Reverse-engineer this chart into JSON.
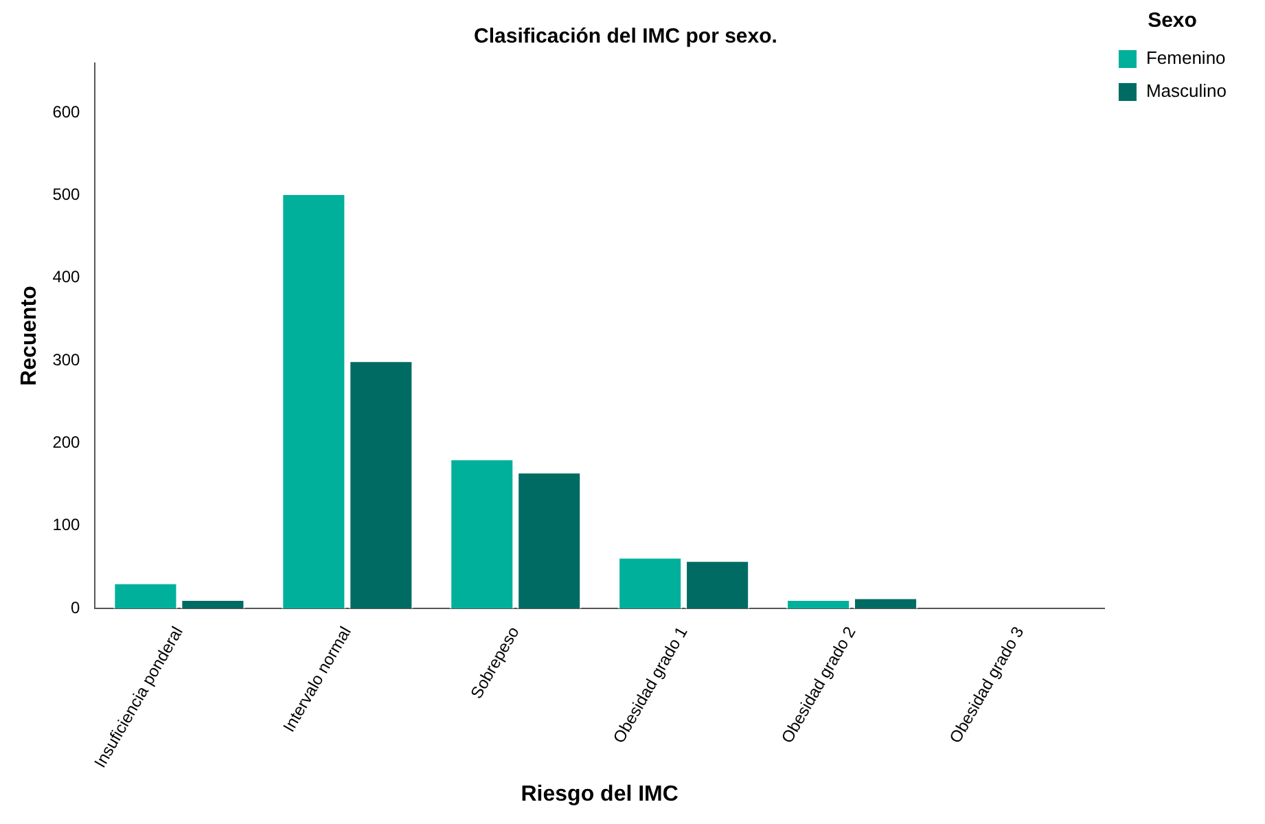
{
  "chart_data": {
    "type": "bar",
    "title": "Clasificación del IMC por sexo.",
    "xlabel": "Riesgo del IMC",
    "ylabel": "Recuento",
    "legend_title": "Sexo",
    "categories": [
      "Insuficiencia ponderal",
      "Intervalo normal",
      "Sobrepeso",
      "Obesidad grado 1",
      "Obesidad grado 2",
      "Obesidad grado 3"
    ],
    "series": [
      {
        "name": "Femenino",
        "color": "#00b09b",
        "values": [
          31,
          502,
          181,
          62,
          11,
          0
        ]
      },
      {
        "name": "Masculino",
        "color": "#006b63",
        "values": [
          11,
          300,
          165,
          58,
          13,
          0
        ]
      }
    ],
    "ylim": [
      0,
      660
    ],
    "yticks": [
      0,
      100,
      200,
      300,
      400,
      500,
      600
    ],
    "grid": false,
    "legend": "top right"
  }
}
